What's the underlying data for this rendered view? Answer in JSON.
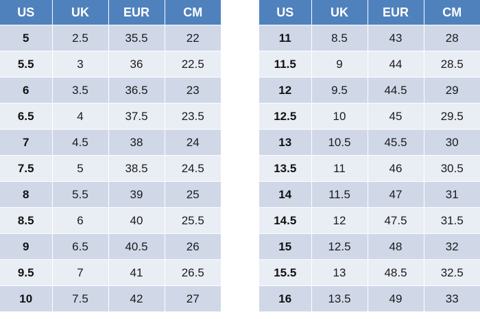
{
  "headers": [
    "US",
    "UK",
    "EUR",
    "CM"
  ],
  "tables": [
    {
      "rows": [
        [
          "5",
          "2.5",
          "35.5",
          "22"
        ],
        [
          "5.5",
          "3",
          "36",
          "22.5"
        ],
        [
          "6",
          "3.5",
          "36.5",
          "23"
        ],
        [
          "6.5",
          "4",
          "37.5",
          "23.5"
        ],
        [
          "7",
          "4.5",
          "38",
          "24"
        ],
        [
          "7.5",
          "5",
          "38.5",
          "24.5"
        ],
        [
          "8",
          "5.5",
          "39",
          "25"
        ],
        [
          "8.5",
          "6",
          "40",
          "25.5"
        ],
        [
          "9",
          "6.5",
          "40.5",
          "26"
        ],
        [
          "9.5",
          "7",
          "41",
          "26.5"
        ],
        [
          "10",
          "7.5",
          "42",
          "27"
        ]
      ]
    },
    {
      "rows": [
        [
          "11",
          "8.5",
          "43",
          "28"
        ],
        [
          "11.5",
          "9",
          "44",
          "28.5"
        ],
        [
          "12",
          "9.5",
          "44.5",
          "29"
        ],
        [
          "12.5",
          "10",
          "45",
          "29.5"
        ],
        [
          "13",
          "10.5",
          "45.5",
          "30"
        ],
        [
          "13.5",
          "11",
          "46",
          "30.5"
        ],
        [
          "14",
          "11.5",
          "47",
          "31"
        ],
        [
          "14.5",
          "12",
          "47.5",
          "31.5"
        ],
        [
          "15",
          "12.5",
          "48",
          "32"
        ],
        [
          "15.5",
          "13",
          "48.5",
          "32.5"
        ],
        [
          "16",
          "13.5",
          "49",
          "33"
        ]
      ]
    }
  ],
  "colors": {
    "header_bg": "#4f81bd",
    "header_text": "#ffffff",
    "row_dark": "#d0d8e8",
    "row_light": "#e9edf4"
  }
}
